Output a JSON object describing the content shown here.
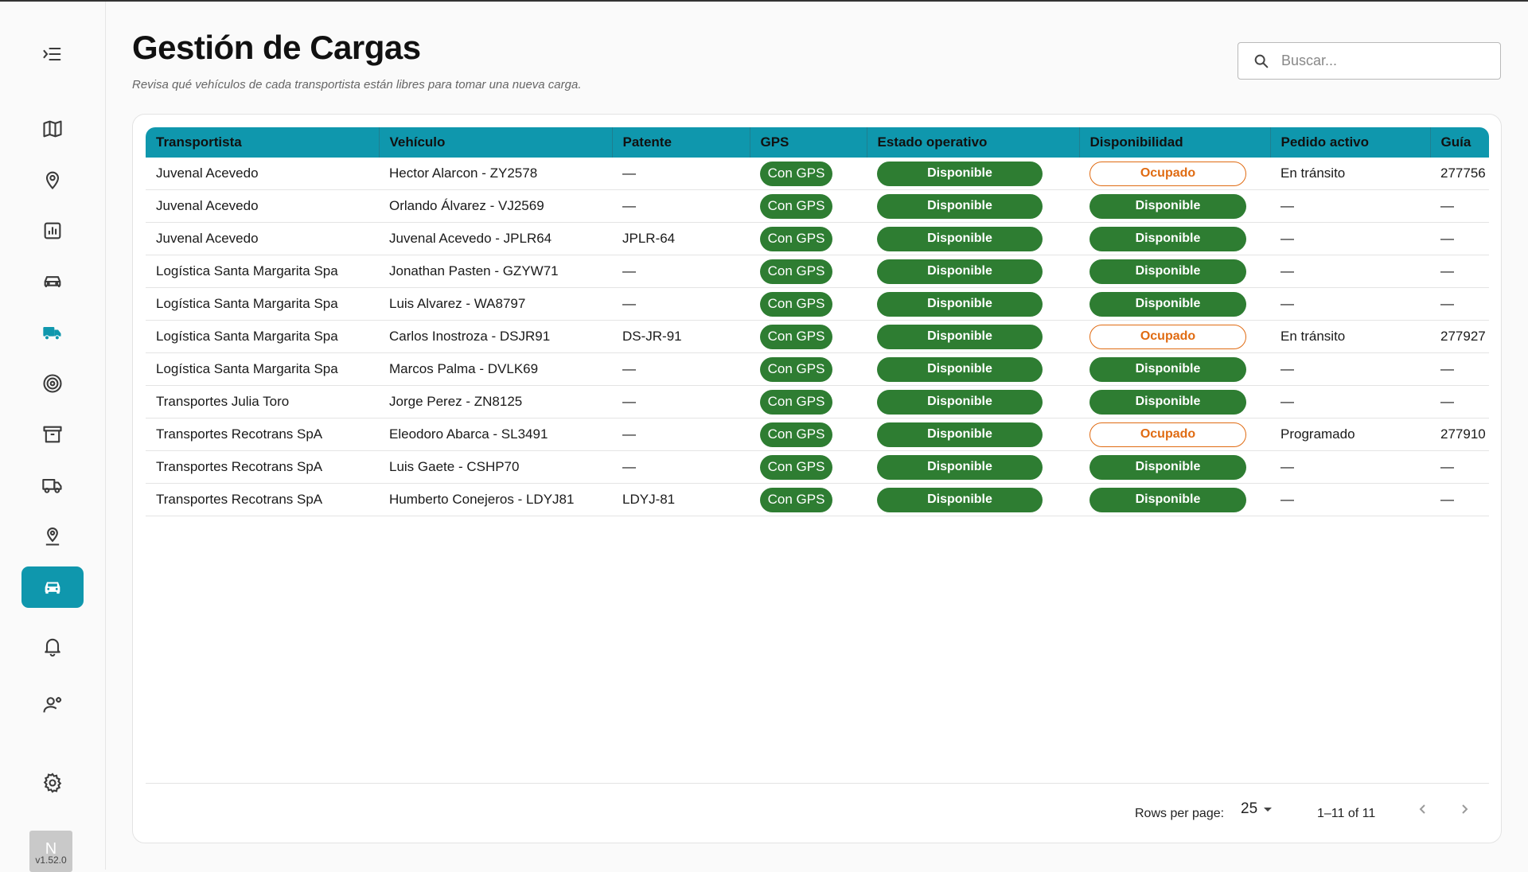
{
  "page": {
    "title": "Gestión de Cargas",
    "subtitle": "Revisa qué vehículos de cada transportista están libres para tomar una nueva carga."
  },
  "search": {
    "placeholder": "Buscar...",
    "icon": "search-icon"
  },
  "sidebar": {
    "icons": [
      "menu-collapse-icon",
      "map-icon",
      "location-pin-icon",
      "bar-chart-icon",
      "car-icon",
      "delivery-truck-icon",
      "target-icon",
      "archive-icon",
      "truck-icon",
      "map-pin-icon",
      "car-active-icon",
      "bell-icon",
      "user-settings-icon",
      "gear-icon"
    ],
    "active": "car-active-icon",
    "active_color": "#0f97ad"
  },
  "user": {
    "initial": "N",
    "version": "v1.52.0"
  },
  "table": {
    "columns": {
      "transportista": "Transportista",
      "vehiculo": "Vehículo",
      "patente": "Patente",
      "gps": "GPS",
      "estado": "Estado operativo",
      "disponibilidad": "Disponibilidad",
      "pedido": "Pedido activo",
      "guia": "Guía"
    },
    "rows": [
      {
        "transportista": "Juvenal Acevedo",
        "vehiculo": "Hector Alarcon - ZY2578",
        "patente": "—",
        "gps": "Con GPS",
        "estado": "Disponible",
        "disponibilidad": "Ocupado",
        "pedido": "En tránsito",
        "guia": "277756"
      },
      {
        "transportista": "Juvenal Acevedo",
        "vehiculo": "Orlando Álvarez - VJ2569",
        "patente": "—",
        "gps": "Con GPS",
        "estado": "Disponible",
        "disponibilidad": "Disponible",
        "pedido": "—",
        "guia": "—"
      },
      {
        "transportista": "Juvenal Acevedo",
        "vehiculo": "Juvenal Acevedo - JPLR64",
        "patente": "JPLR-64",
        "gps": "Con GPS",
        "estado": "Disponible",
        "disponibilidad": "Disponible",
        "pedido": "—",
        "guia": "—"
      },
      {
        "transportista": "Logística Santa Margarita Spa",
        "vehiculo": "Jonathan Pasten - GZYW71",
        "patente": "—",
        "gps": "Con GPS",
        "estado": "Disponible",
        "disponibilidad": "Disponible",
        "pedido": "—",
        "guia": "—"
      },
      {
        "transportista": "Logística Santa Margarita Spa",
        "vehiculo": "Luis Alvarez - WA8797",
        "patente": "—",
        "gps": "Con GPS",
        "estado": "Disponible",
        "disponibilidad": "Disponible",
        "pedido": "—",
        "guia": "—"
      },
      {
        "transportista": "Logística Santa Margarita Spa",
        "vehiculo": "Carlos Inostroza - DSJR91",
        "patente": "DS-JR-91",
        "gps": "Con GPS",
        "estado": "Disponible",
        "disponibilidad": "Ocupado",
        "pedido": "En tránsito",
        "guia": "277927"
      },
      {
        "transportista": "Logística Santa Margarita Spa",
        "vehiculo": "Marcos Palma - DVLK69",
        "patente": "—",
        "gps": "Con GPS",
        "estado": "Disponible",
        "disponibilidad": "Disponible",
        "pedido": "—",
        "guia": "—"
      },
      {
        "transportista": "Transportes Julia Toro",
        "vehiculo": "Jorge Perez - ZN8125",
        "patente": "—",
        "gps": "Con GPS",
        "estado": "Disponible",
        "disponibilidad": "Disponible",
        "pedido": "—",
        "guia": "—"
      },
      {
        "transportista": "Transportes Recotrans SpA",
        "vehiculo": "Eleodoro Abarca - SL3491",
        "patente": "—",
        "gps": "Con GPS",
        "estado": "Disponible",
        "disponibilidad": "Ocupado",
        "pedido": "Programado",
        "guia": "277910"
      },
      {
        "transportista": "Transportes Recotrans SpA",
        "vehiculo": "Luis Gaete - CSHP70",
        "patente": "—",
        "gps": "Con GPS",
        "estado": "Disponible",
        "disponibilidad": "Disponible",
        "pedido": "—",
        "guia": "—"
      },
      {
        "transportista": "Transportes Recotrans SpA",
        "vehiculo": "Humberto Conejeros - LDYJ81",
        "patente": "LDYJ-81",
        "gps": "Con GPS",
        "estado": "Disponible",
        "disponibilidad": "Disponible",
        "pedido": "—",
        "guia": "—"
      }
    ]
  },
  "pagination": {
    "rows_per_page_label": "Rows per page:",
    "rows_per_page": "25",
    "range": "1–11 of 11"
  },
  "colors": {
    "header_bg": "#0f97ad",
    "pill_green": "#2e7d32",
    "busy_orange": "#e06b12"
  }
}
